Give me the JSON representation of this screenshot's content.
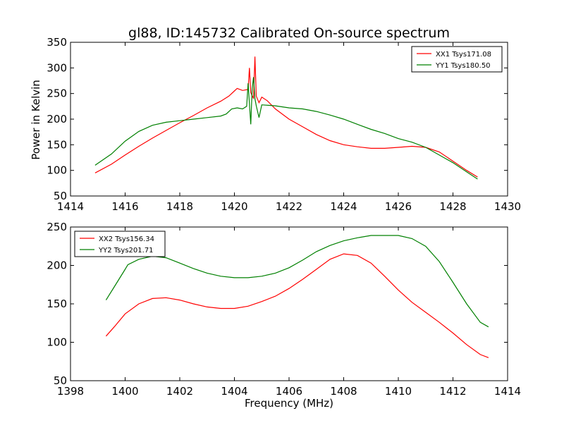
{
  "figure": {
    "title": "gl88, ID:145732 Calibrated On-source spectrum",
    "ylabel": "Power in Kelvin",
    "xlabel": "Frequency (MHz)"
  },
  "chart_data": [
    {
      "type": "line",
      "name": "top-panel",
      "xlim": [
        1414,
        1430
      ],
      "ylim": [
        50,
        350
      ],
      "xticks": [
        1414,
        1416,
        1418,
        1420,
        1422,
        1424,
        1426,
        1428,
        1430
      ],
      "yticks": [
        50,
        100,
        150,
        200,
        250,
        300,
        350
      ],
      "legend_position": "top-right",
      "series": [
        {
          "name": "XX1 Tsys171.08",
          "color": "#ff0000",
          "points": [
            [
              1414.9,
              95
            ],
            [
              1415.5,
              112
            ],
            [
              1416,
              130
            ],
            [
              1416.5,
              147
            ],
            [
              1417,
              163
            ],
            [
              1417.5,
              178
            ],
            [
              1418,
              193
            ],
            [
              1418.5,
              207
            ],
            [
              1419,
              222
            ],
            [
              1419.5,
              235
            ],
            [
              1419.8,
              245
            ],
            [
              1420.0,
              255
            ],
            [
              1420.1,
              260
            ],
            [
              1420.3,
              256
            ],
            [
              1420.5,
              258
            ],
            [
              1420.55,
              300
            ],
            [
              1420.6,
              252
            ],
            [
              1420.7,
              240
            ],
            [
              1420.75,
              322
            ],
            [
              1420.8,
              245
            ],
            [
              1420.9,
              232
            ],
            [
              1421.0,
              243
            ],
            [
              1421.2,
              236
            ],
            [
              1421.5,
              220
            ],
            [
              1422,
              200
            ],
            [
              1422.5,
              185
            ],
            [
              1423,
              170
            ],
            [
              1423.5,
              158
            ],
            [
              1424,
              150
            ],
            [
              1424.5,
              146
            ],
            [
              1425,
              143
            ],
            [
              1425.5,
              143
            ],
            [
              1426,
              145
            ],
            [
              1426.5,
              147
            ],
            [
              1427,
              145
            ],
            [
              1427.5,
              136
            ],
            [
              1428,
              118
            ],
            [
              1428.5,
              100
            ],
            [
              1428.9,
              87
            ]
          ]
        },
        {
          "name": "YY1 Tsys180.50",
          "color": "#008000",
          "points": [
            [
              1414.9,
              110
            ],
            [
              1415.5,
              132
            ],
            [
              1416,
              157
            ],
            [
              1416.5,
              176
            ],
            [
              1417,
              188
            ],
            [
              1417.5,
              194
            ],
            [
              1418,
              197
            ],
            [
              1418.5,
              200
            ],
            [
              1419,
              203
            ],
            [
              1419.5,
              206
            ],
            [
              1419.7,
              210
            ],
            [
              1419.9,
              220
            ],
            [
              1420.1,
              222
            ],
            [
              1420.3,
              220
            ],
            [
              1420.45,
              225
            ],
            [
              1420.5,
              270
            ],
            [
              1420.55,
              230
            ],
            [
              1420.6,
              190
            ],
            [
              1420.65,
              260
            ],
            [
              1420.7,
              282
            ],
            [
              1420.75,
              240
            ],
            [
              1420.8,
              226
            ],
            [
              1420.9,
              203
            ],
            [
              1421.0,
              228
            ],
            [
              1421.5,
              226
            ],
            [
              1422,
              222
            ],
            [
              1422.5,
              220
            ],
            [
              1423,
              215
            ],
            [
              1423.5,
              208
            ],
            [
              1424,
              200
            ],
            [
              1424.5,
              190
            ],
            [
              1425,
              180
            ],
            [
              1425.5,
              172
            ],
            [
              1426,
              162
            ],
            [
              1426.5,
              155
            ],
            [
              1427,
              145
            ],
            [
              1427.5,
              130
            ],
            [
              1428,
              115
            ],
            [
              1428.5,
              97
            ],
            [
              1428.9,
              83
            ]
          ]
        }
      ]
    },
    {
      "type": "line",
      "name": "bottom-panel",
      "xlim": [
        1398,
        1414
      ],
      "ylim": [
        50,
        250
      ],
      "xticks": [
        1398,
        1400,
        1402,
        1404,
        1406,
        1408,
        1410,
        1412,
        1414
      ],
      "yticks": [
        50,
        100,
        150,
        200,
        250
      ],
      "legend_position": "top-left",
      "series": [
        {
          "name": "XX2 Tsys156.34",
          "color": "#ff0000",
          "points": [
            [
              1399.3,
              108
            ],
            [
              1399.6,
              120
            ],
            [
              1400,
              137
            ],
            [
              1400.5,
              150
            ],
            [
              1401,
              157
            ],
            [
              1401.5,
              158
            ],
            [
              1402,
              155
            ],
            [
              1402.5,
              150
            ],
            [
              1403,
              146
            ],
            [
              1403.5,
              144
            ],
            [
              1404,
              144
            ],
            [
              1404.5,
              147
            ],
            [
              1405,
              153
            ],
            [
              1405.5,
              160
            ],
            [
              1406,
              170
            ],
            [
              1406.5,
              182
            ],
            [
              1407,
              195
            ],
            [
              1407.5,
              208
            ],
            [
              1408,
              215
            ],
            [
              1408.5,
              213
            ],
            [
              1409,
              203
            ],
            [
              1409.5,
              186
            ],
            [
              1410,
              168
            ],
            [
              1410.5,
              152
            ],
            [
              1411,
              139
            ],
            [
              1411.5,
              126
            ],
            [
              1412,
              112
            ],
            [
              1412.5,
              97
            ],
            [
              1413,
              84
            ],
            [
              1413.3,
              80
            ]
          ]
        },
        {
          "name": "YY2 Tsys201.71",
          "color": "#008000",
          "points": [
            [
              1399.3,
              155
            ],
            [
              1399.6,
              172
            ],
            [
              1400,
              195
            ],
            [
              1400.1,
              201
            ],
            [
              1400.5,
              208
            ],
            [
              1401,
              212
            ],
            [
              1401.5,
              210
            ],
            [
              1402,
              203
            ],
            [
              1402.5,
              196
            ],
            [
              1403,
              190
            ],
            [
              1403.5,
              186
            ],
            [
              1404,
              184
            ],
            [
              1404.5,
              184
            ],
            [
              1405,
              186
            ],
            [
              1405.5,
              190
            ],
            [
              1406,
              197
            ],
            [
              1406.5,
              207
            ],
            [
              1407,
              218
            ],
            [
              1407.5,
              226
            ],
            [
              1408,
              232
            ],
            [
              1408.5,
              236
            ],
            [
              1409,
              239
            ],
            [
              1409.5,
              239
            ],
            [
              1410,
              239
            ],
            [
              1410.5,
              235
            ],
            [
              1411,
              225
            ],
            [
              1411.5,
              205
            ],
            [
              1412,
              178
            ],
            [
              1412.5,
              150
            ],
            [
              1413,
              126
            ],
            [
              1413.3,
              120
            ]
          ]
        }
      ]
    }
  ]
}
